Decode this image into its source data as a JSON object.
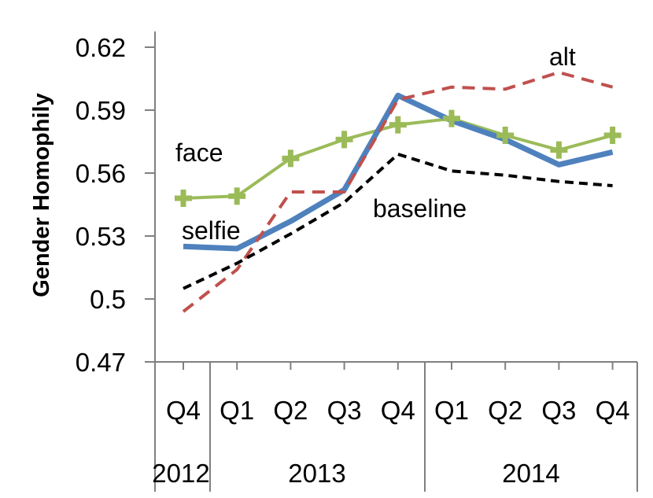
{
  "chart_data": {
    "type": "line",
    "ylabel": "Gender Homophily",
    "xlabel": "",
    "title": "",
    "ylim": [
      0.47,
      0.62
    ],
    "yticks": [
      "0.47",
      "0.5",
      "0.53",
      "0.56",
      "0.59",
      "0.62"
    ],
    "categories": [
      "Q4",
      "Q1",
      "Q2",
      "Q3",
      "Q4",
      "Q1",
      "Q2",
      "Q3",
      "Q4"
    ],
    "year_groups": [
      {
        "label": "2012",
        "start": 0,
        "end": 0
      },
      {
        "label": "2013",
        "start": 1,
        "end": 4
      },
      {
        "label": "2014",
        "start": 5,
        "end": 8
      }
    ],
    "grid": false,
    "legend": "inline labels",
    "series": [
      {
        "name": "face",
        "color": "#9BBB59",
        "style": "solid-plus-markers",
        "values": [
          0.548,
          0.549,
          0.567,
          0.576,
          0.583,
          0.586,
          0.578,
          0.571,
          0.578
        ]
      },
      {
        "name": "selfie",
        "color": "#4F81BD",
        "style": "solid-thick",
        "values": [
          0.525,
          0.524,
          0.537,
          0.552,
          0.597,
          0.585,
          0.576,
          0.564,
          0.57
        ]
      },
      {
        "name": "alt",
        "color": "#C0504D",
        "style": "dashed",
        "values": [
          0.494,
          0.514,
          0.551,
          0.551,
          0.595,
          0.601,
          0.6,
          0.608,
          0.601
        ]
      },
      {
        "name": "baseline",
        "color": "#000000",
        "style": "dashed",
        "values": [
          0.505,
          0.517,
          0.531,
          0.546,
          0.569,
          0.561,
          0.559,
          0.556,
          0.554
        ]
      }
    ]
  }
}
